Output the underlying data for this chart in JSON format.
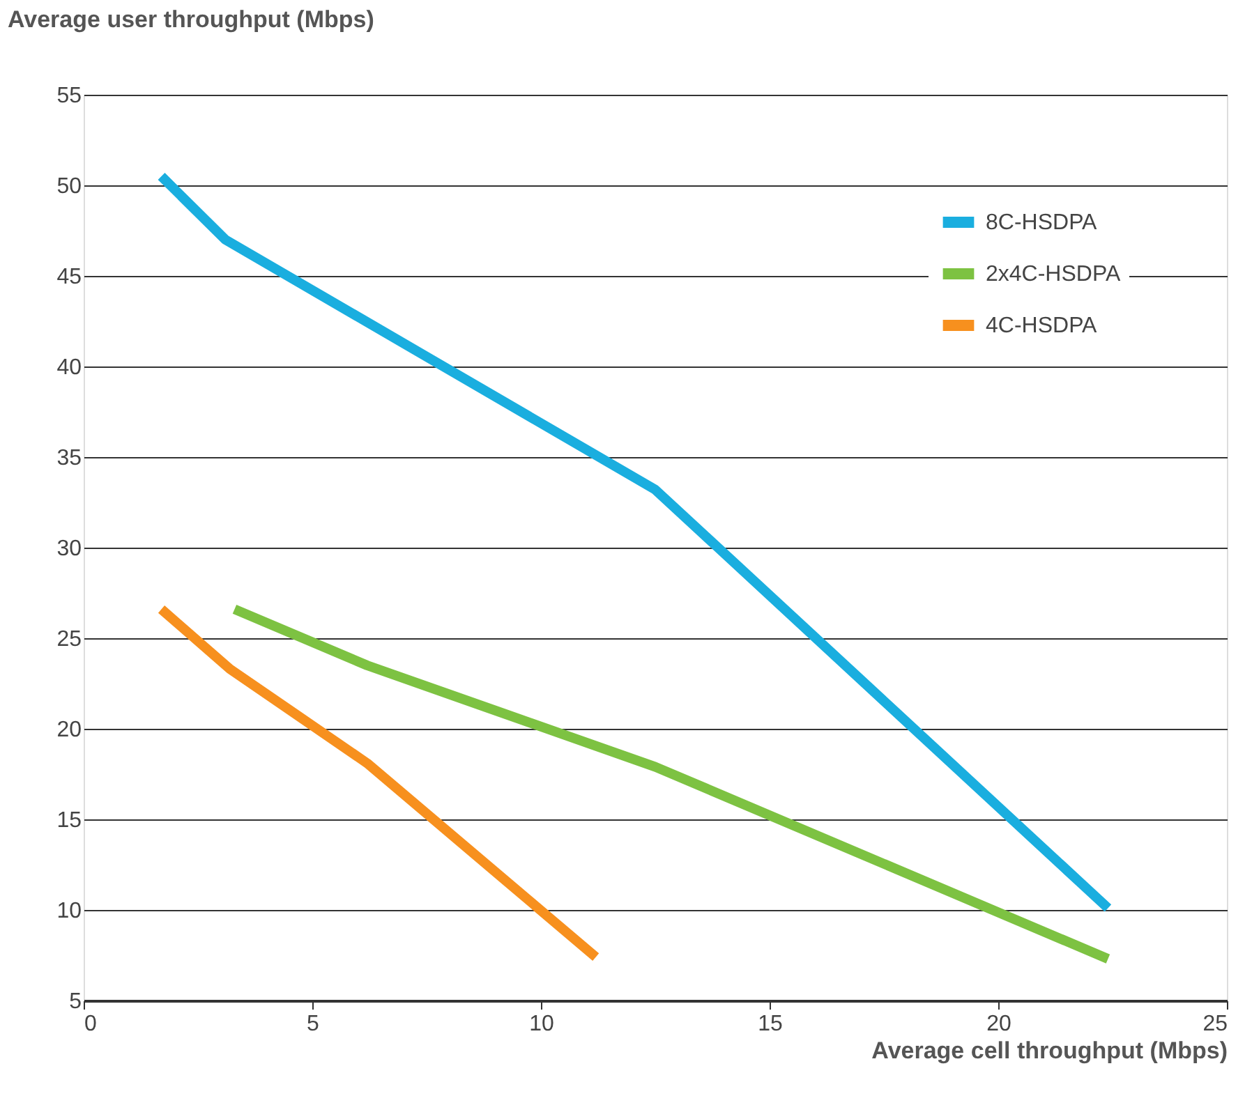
{
  "chart_data": {
    "type": "line",
    "xlabel": "Average cell throughput (Mbps)",
    "ylabel": "Average user throughput (Mbps)",
    "xlim": [
      0,
      25
    ],
    "xticks": [
      0,
      5,
      10,
      15,
      20,
      25
    ],
    "ylim": [
      5,
      55
    ],
    "yticks": [
      5,
      10,
      15,
      20,
      25,
      30,
      35,
      40,
      45,
      50,
      55
    ],
    "grid": "y",
    "legend": "top right",
    "marker": "none",
    "line_style": "solid",
    "series": [
      {
        "name": "8C-HSDPA",
        "color": "#1aaedf",
        "x": [
          1.7,
          3.1,
          12.5,
          22.4
        ],
        "values": [
          50.5,
          47.0,
          33.2,
          10.1
        ]
      },
      {
        "name": "2x4C-HSDPA",
        "color": "#7dc242",
        "x": [
          3.3,
          6.2,
          12.5,
          22.4
        ],
        "values": [
          26.6,
          23.5,
          17.9,
          7.3
        ]
      },
      {
        "name": "4C-HSDPA",
        "color": "#f7901e",
        "x": [
          1.7,
          3.2,
          6.2,
          11.2
        ],
        "values": [
          26.6,
          23.3,
          18.1,
          7.4
        ]
      }
    ]
  }
}
